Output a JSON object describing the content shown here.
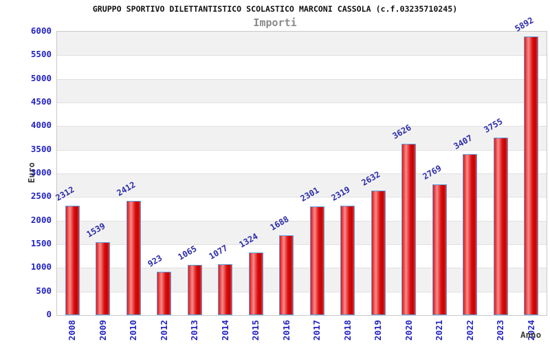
{
  "chart_data": {
    "type": "bar",
    "title": "GRUPPO SPORTIVO DILETTANTISTICO SCOLASTICO MARCONI CASSOLA (c.f.03235710245)",
    "subtitle": "Importi",
    "xlabel": "Anno",
    "ylabel": "Euro",
    "categories": [
      "2008",
      "2009",
      "2010",
      "2012",
      "2013",
      "2014",
      "2015",
      "2016",
      "2017",
      "2018",
      "2019",
      "2020",
      "2021",
      "2022",
      "2023",
      "2024"
    ],
    "values": [
      2312,
      1539,
      2412,
      923,
      1065,
      1077,
      1324,
      1688,
      2301,
      2319,
      2632,
      3626,
      2769,
      3407,
      3755,
      5892
    ],
    "ylim": [
      0,
      6000
    ],
    "ytick_step": 500,
    "grid": true,
    "legend": "none",
    "colors": {
      "bar_fill": "#dd0c0c",
      "bar_highlight": "#f58c8c",
      "bar_border": "#58a0dd",
      "tick_label": "#2323c4",
      "value_label": "#2b2bab",
      "band_gray": "#f1f1f1",
      "band_white": "#ffffff",
      "grid_line": "#e0e0e0",
      "title_color": "#111111",
      "subtitle_color": "#8a8a8a",
      "axis_title_color": "#3a3a3a"
    }
  }
}
